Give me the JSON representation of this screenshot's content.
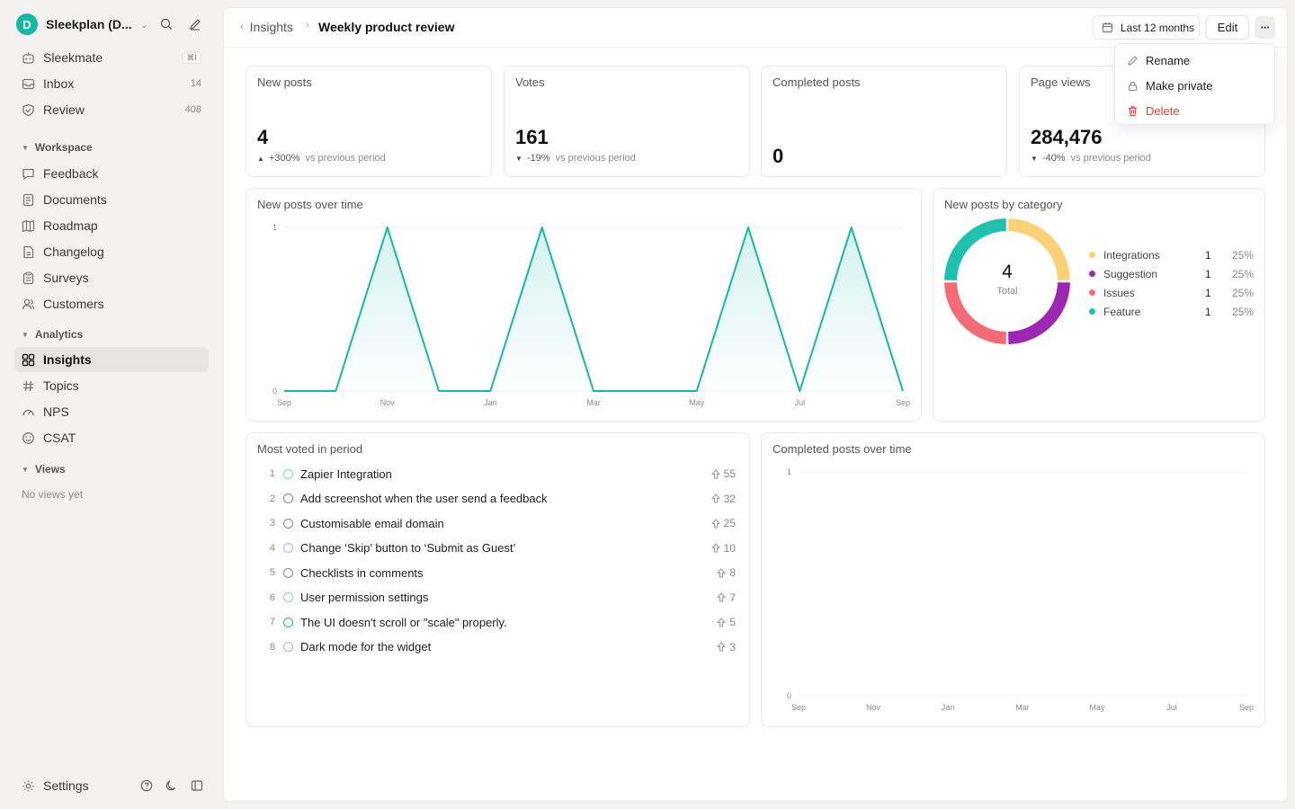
{
  "workspace": {
    "initial": "D",
    "name": "Sleekplan (D..."
  },
  "nav_top": [
    {
      "label": "Sleekmate",
      "shortcut": "⌘I"
    },
    {
      "label": "Inbox",
      "count": "14"
    },
    {
      "label": "Review",
      "count": "408"
    }
  ],
  "sections": {
    "workspace": "Workspace",
    "analytics": "Analytics",
    "views": "Views",
    "no_views": "No views yet"
  },
  "nav_workspace": [
    "Feedback",
    "Documents",
    "Roadmap",
    "Changelog",
    "Surveys",
    "Customers"
  ],
  "nav_analytics": [
    "Insights",
    "Topics",
    "NPS",
    "CSAT"
  ],
  "settings_label": "Settings",
  "breadcrumb": {
    "parent": "Insights",
    "current": "Weekly product review"
  },
  "toolbar": {
    "date_range": "Last 12 months",
    "edit": "Edit",
    "more": "···"
  },
  "menu": {
    "rename": "Rename",
    "make_private": "Make private",
    "delete": "Delete"
  },
  "stats": [
    {
      "title": "New posts",
      "value": "4",
      "delta": "+300%",
      "direction": "up",
      "vs": "vs previous period"
    },
    {
      "title": "Votes",
      "value": "161",
      "delta": "-19%",
      "direction": "down",
      "vs": "vs previous period"
    },
    {
      "title": "Completed posts",
      "value": "0"
    },
    {
      "title": "Page views",
      "value": "284,476",
      "delta": "-40%",
      "direction": "down",
      "vs": "vs previous period"
    }
  ],
  "new_posts_chart": {
    "title": "New posts over time"
  },
  "category_chart": {
    "title": "New posts by category",
    "total": "4",
    "total_label": "Total"
  },
  "most_voted": {
    "title": "Most voted in period",
    "items": [
      {
        "rank": "1",
        "title": "Zapier Integration",
        "votes": "55",
        "color": "#7fd6cf"
      },
      {
        "rank": "2",
        "title": "Add screenshot when the user send a feedback",
        "votes": "32",
        "color": "#888888"
      },
      {
        "rank": "3",
        "title": "Customisable email domain",
        "votes": "25",
        "color": "#888888"
      },
      {
        "rank": "4",
        "title": "Change ‘Skip’ button to ‘Submit as Guest’",
        "votes": "10",
        "color": "#b3aef0"
      },
      {
        "rank": "5",
        "title": "Checklists in comments",
        "votes": "8",
        "color": "#888888"
      },
      {
        "rank": "6",
        "title": "User permission settings",
        "votes": "7",
        "color": "#7fd6cf"
      },
      {
        "rank": "7",
        "title": "The UI doesn't scroll or \"scale\" properly.",
        "votes": "5",
        "color": "#17b6a6"
      },
      {
        "rank": "8",
        "title": "Dark mode for the widget",
        "votes": "3",
        "color": "#b3aef0"
      }
    ]
  },
  "completed_chart": {
    "title": "Completed posts over time"
  },
  "chart_data": [
    {
      "type": "area",
      "title": "New posts over time",
      "x": [
        "Sep",
        "Oct",
        "Nov",
        "Dec",
        "Jan",
        "Feb",
        "Mar",
        "Apr",
        "May",
        "Jun",
        "Jul",
        "Aug",
        "Sep"
      ],
      "x_ticks": [
        "Sep",
        "Nov",
        "Jan",
        "Mar",
        "May",
        "Jul",
        "Sep"
      ],
      "values": [
        0,
        0,
        1,
        0,
        0,
        1,
        0,
        0,
        0,
        1,
        0,
        1,
        0
      ],
      "ylim": [
        0,
        1
      ],
      "y_ticks": [
        "0",
        "1"
      ],
      "color": "#17b6a6",
      "grid": true
    },
    {
      "type": "pie",
      "title": "New posts by category",
      "categories": [
        "Integrations",
        "Suggestion",
        "Issues",
        "Feature"
      ],
      "values": [
        1,
        1,
        1,
        1
      ],
      "percents": [
        "25%",
        "25%",
        "25%",
        "25%"
      ],
      "colors": [
        "#fbd178",
        "#9c27b0",
        "#f36b74",
        "#20c0ae"
      ],
      "legend": "right"
    },
    {
      "type": "line",
      "title": "Completed posts over time",
      "x": [
        "Sep",
        "Oct",
        "Nov",
        "Dec",
        "Jan",
        "Feb",
        "Mar",
        "Apr",
        "May",
        "Jun",
        "Jul",
        "Aug",
        "Sep"
      ],
      "x_ticks": [
        "Sep",
        "Nov",
        "Jan",
        "Mar",
        "May",
        "Jul",
        "Sep"
      ],
      "values": [
        0,
        0,
        0,
        0,
        0,
        0,
        0,
        0,
        0,
        0,
        0,
        0,
        0
      ],
      "ylim": [
        0,
        1
      ],
      "y_ticks": [
        "0",
        "1"
      ],
      "grid": true
    }
  ]
}
